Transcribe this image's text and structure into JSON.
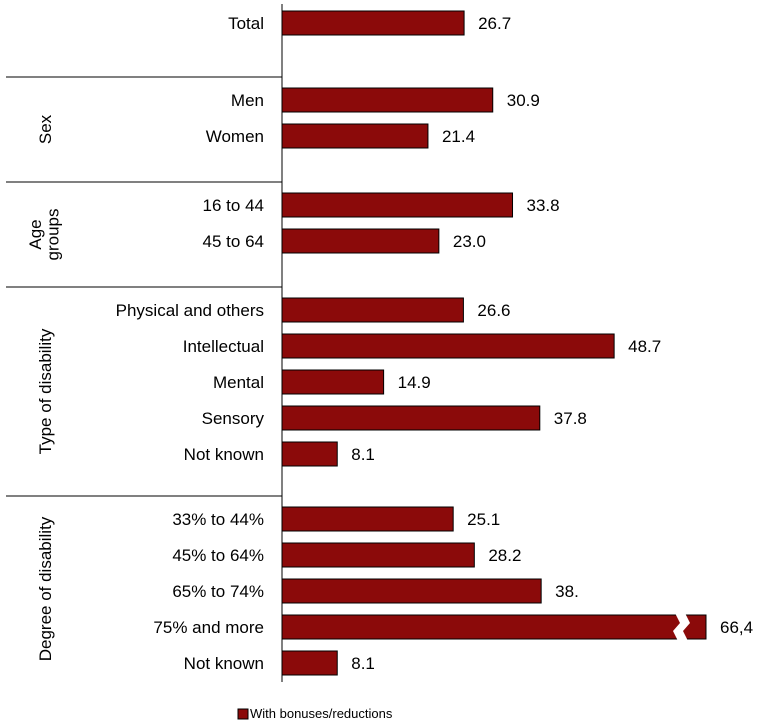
{
  "chart_data": {
    "type": "bar",
    "orientation": "horizontal",
    "title": "",
    "xlabel": "",
    "ylabel": "",
    "grid": false,
    "legend_position": "bottom",
    "series": [
      {
        "name": "With bonuses/reductions",
        "color": "#8B0A0A"
      }
    ],
    "groups": [
      {
        "label": "",
        "items": [
          {
            "category": "Total",
            "value": 26.7,
            "label": "26.7"
          }
        ]
      },
      {
        "label": "Sex",
        "items": [
          {
            "category": "Men",
            "value": 30.9,
            "label": "30.9"
          },
          {
            "category": "Women",
            "value": 21.4,
            "label": "21.4"
          }
        ]
      },
      {
        "label": "Age groups",
        "label_lines": [
          "Age",
          "groups"
        ],
        "items": [
          {
            "category": "16 to 44",
            "value": 33.8,
            "label": "33.8"
          },
          {
            "category": "45 to 64",
            "value": 23.0,
            "label": "23.0"
          }
        ]
      },
      {
        "label": "Type of disability",
        "items": [
          {
            "category": "Physical and others",
            "value": 26.6,
            "label": "26.6"
          },
          {
            "category": "Intellectual",
            "value": 48.7,
            "label": "48.7"
          },
          {
            "category": "Mental",
            "value": 14.9,
            "label": "14.9"
          },
          {
            "category": "Sensory",
            "value": 37.8,
            "label": "37.8"
          },
          {
            "category": "Not known",
            "value": 8.1,
            "label": "8.1"
          }
        ]
      },
      {
        "label": "Degree of disability",
        "items": [
          {
            "category": "33% to 44%",
            "value": 25.1,
            "label": "25.1"
          },
          {
            "category": "45% to 64%",
            "value": 28.2,
            "label": "28.2"
          },
          {
            "category": "65% to 74%",
            "value": 38.0,
            "label": "38."
          },
          {
            "category": "75% and more",
            "value": 66.4,
            "label": "66,4",
            "axis_break": true
          },
          {
            "category": "Not known",
            "value": 8.1,
            "label": "8.1"
          }
        ]
      }
    ]
  }
}
